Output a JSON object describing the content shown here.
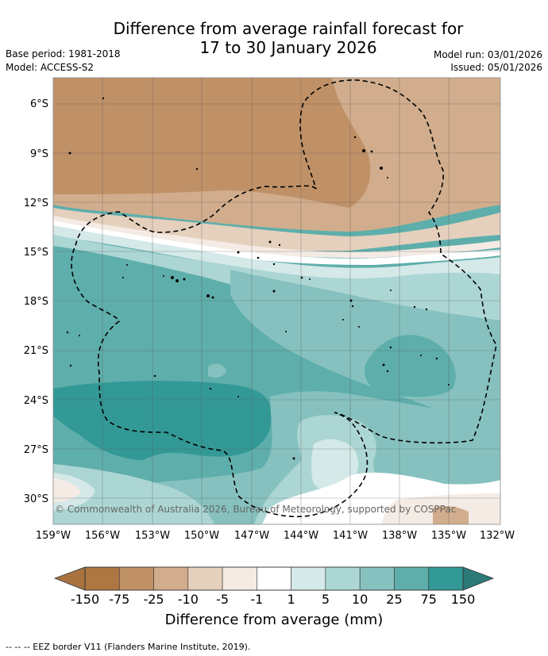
{
  "title": {
    "line1": "Difference from average rainfall forecast for",
    "line2": "17 to 30 January 2026"
  },
  "meta": {
    "base_period": "Base period: 1981-2018",
    "model": "Model: ACCESS-S2",
    "model_run": "Model run: 03/01/2026",
    "issued": "Issued: 05/01/2026"
  },
  "map": {
    "lat_labels": [
      "6°S",
      "9°S",
      "12°S",
      "15°S",
      "18°S",
      "21°S",
      "24°S",
      "27°S",
      "30°S"
    ],
    "lon_labels": [
      "159°W",
      "156°W",
      "153°W",
      "150°W",
      "147°W",
      "144°W",
      "141°W",
      "138°W",
      "135°W",
      "132°W"
    ],
    "copyright": "© Commonwealth of Australia 2026, Bureau of Meteorology, supported by COSPPac"
  },
  "colorbar": {
    "label": "Difference from average (mm)",
    "ticks": [
      "-150",
      "-75",
      "-25",
      "-10",
      "-5",
      "-1",
      "1",
      "5",
      "10",
      "25",
      "75",
      "150"
    ],
    "colors": {
      "below_min": "#a8733f",
      "bins": [
        "#ad7642",
        "#c09167",
        "#d1ad8d",
        "#e5d0bd",
        "#f4ebe4",
        "#ffffff",
        "#d4e9e8",
        "#acd6d4",
        "#86c1bf",
        "#5eaeab",
        "#339996"
      ],
      "above_max": "#2b7a78"
    }
  },
  "footer": "-- -- -- EEZ border V11 (Flanders Marine Institute, 2019)."
}
